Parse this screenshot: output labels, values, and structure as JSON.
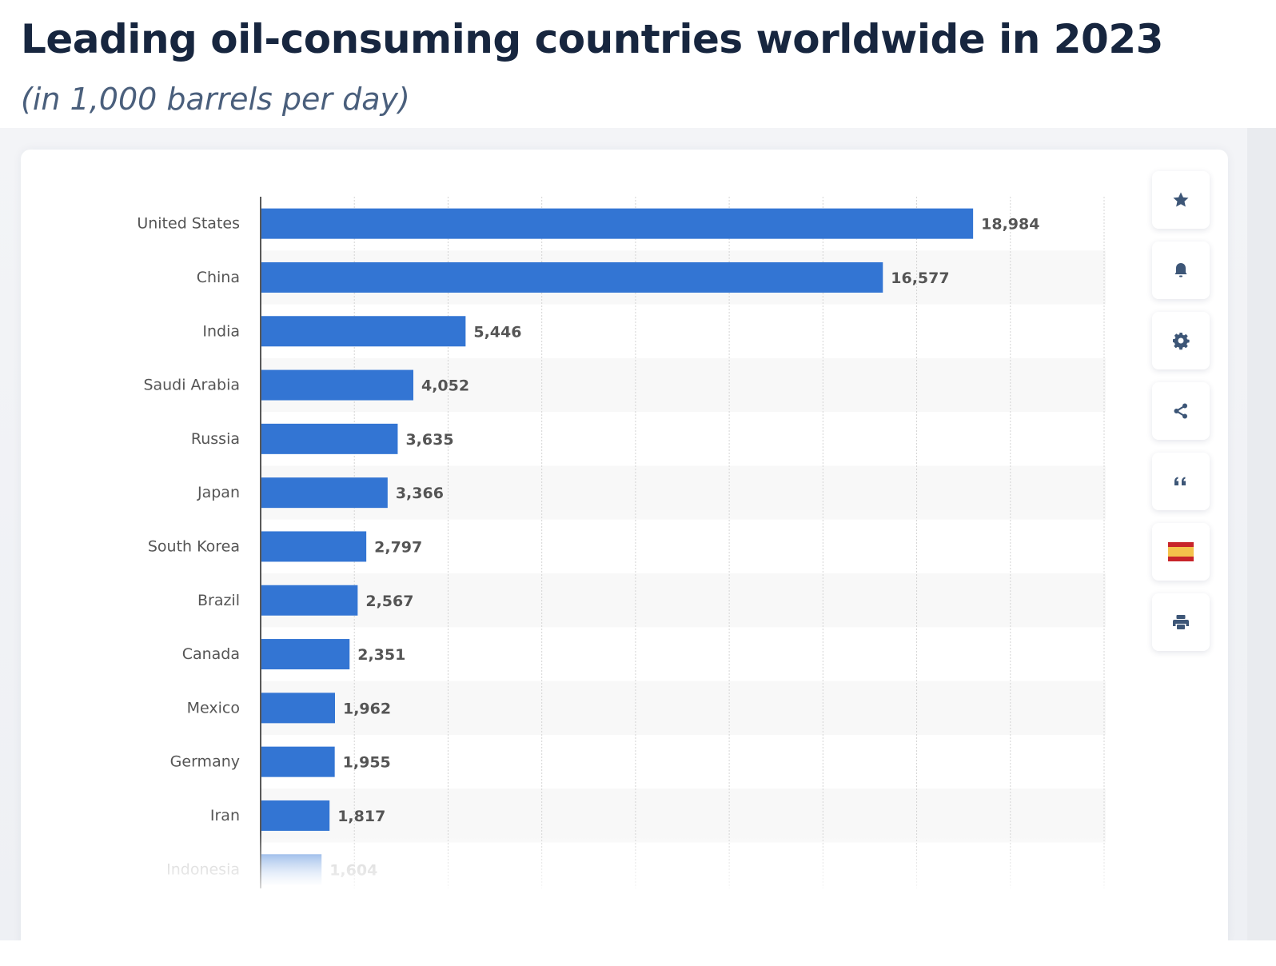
{
  "header": {
    "title": "Leading oil-consuming countries worldwide in 2023",
    "subtitle": "(in 1,000 barrels per day)"
  },
  "toolbar": {
    "items": [
      {
        "name": "favorite",
        "icon": "star-icon"
      },
      {
        "name": "notification",
        "icon": "bell-icon"
      },
      {
        "name": "settings",
        "icon": "gear-icon"
      },
      {
        "name": "share",
        "icon": "share-icon"
      },
      {
        "name": "citation",
        "icon": "quote-icon"
      },
      {
        "name": "language",
        "icon": "spain-flag-icon"
      },
      {
        "name": "print",
        "icon": "printer-icon"
      }
    ]
  },
  "colors": {
    "bar": "#3375d3",
    "title": "#17263f",
    "subtitle": "#4a5f7c",
    "icon": "#3d5677"
  },
  "chart_data": {
    "type": "bar",
    "orientation": "horizontal",
    "title": "Leading oil-consuming countries worldwide in 2023",
    "subtitle": "(in 1,000 barrels per day)",
    "xlabel": "",
    "ylabel": "",
    "xlim": [
      0,
      22500
    ],
    "grid_step": 2500,
    "grid": true,
    "categories": [
      "United States",
      "China",
      "India",
      "Saudi Arabia",
      "Russia",
      "Japan",
      "South Korea",
      "Brazil",
      "Canada",
      "Mexico",
      "Germany",
      "Iran",
      "Indonesia"
    ],
    "values": [
      18984,
      16577,
      5446,
      4052,
      3635,
      3366,
      2797,
      2567,
      2351,
      1962,
      1955,
      1817,
      1604
    ],
    "value_labels": [
      "18,984",
      "16,577",
      "5,446",
      "4,052",
      "3,635",
      "3,366",
      "2,797",
      "2,567",
      "2,351",
      "1,962",
      "1,955",
      "1,817",
      "1,604"
    ]
  }
}
